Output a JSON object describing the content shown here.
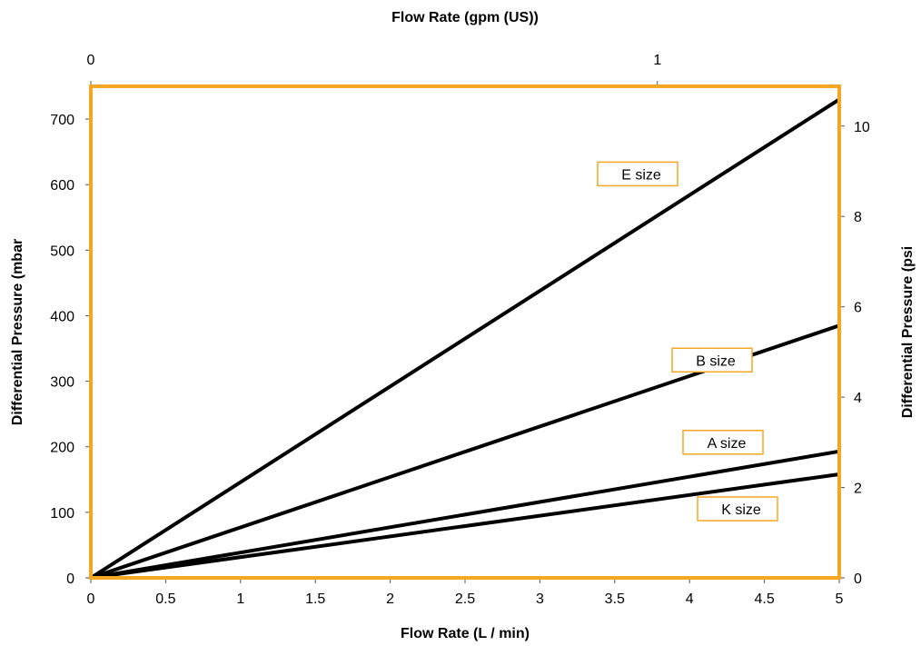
{
  "chart_data": {
    "type": "line",
    "title": "",
    "xlabel": "Flow Rate (L / min)",
    "ylabel": "Differential Pressure (mbar",
    "x2label": "Flow Rate (gpm (US))",
    "y2label": "Differential Pressure (psi",
    "xlim": [
      0,
      5
    ],
    "ylim": [
      0,
      750
    ],
    "x2lim": [
      0,
      1.321
    ],
    "y2lim": [
      0,
      10.88
    ],
    "x_ticks": [
      "0",
      "0.5",
      "1",
      "1.5",
      "2",
      "2.5",
      "3",
      "3.5",
      "4",
      "4.5",
      "5"
    ],
    "y_ticks": [
      "0",
      "100",
      "200",
      "300",
      "400",
      "500",
      "600",
      "700"
    ],
    "x2_ticks": [
      "0",
      "1"
    ],
    "y2_ticks": [
      "0",
      "2",
      "4",
      "6",
      "8",
      "10"
    ],
    "grid": false,
    "frame_color": "#f5a623",
    "line_color": "#000000",
    "series": [
      {
        "name": "E size",
        "x": [
          0,
          5
        ],
        "y": [
          0,
          730
        ]
      },
      {
        "name": "B size",
        "x": [
          0,
          5
        ],
        "y": [
          0,
          385
        ]
      },
      {
        "name": "A size",
        "x": [
          0,
          5
        ],
        "y": [
          0,
          193
        ]
      },
      {
        "name": "K size",
        "x": [
          0,
          5
        ],
        "y": [
          0,
          158
        ]
      }
    ]
  }
}
